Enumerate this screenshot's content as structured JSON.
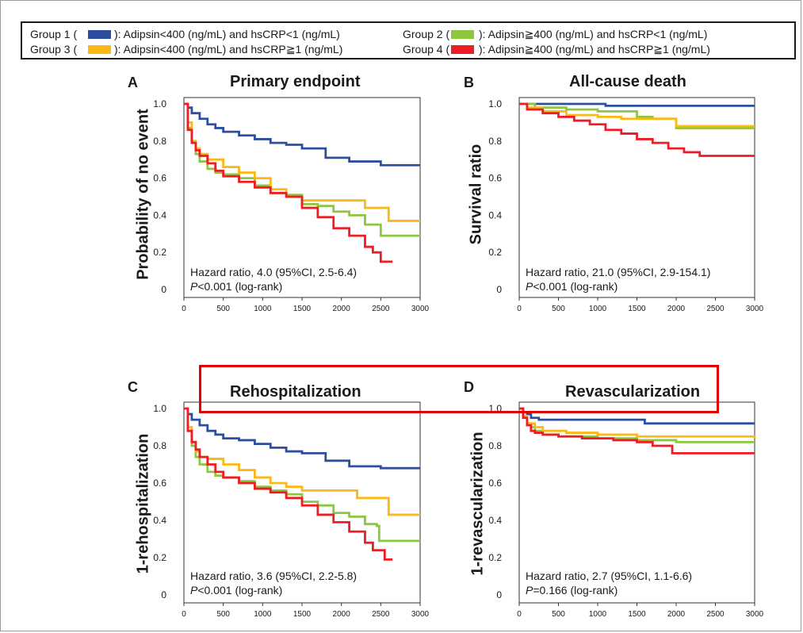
{
  "colors": {
    "g1": "#2b4f9e",
    "g2": "#8dc63f",
    "g3": "#fbb917",
    "g4": "#ee1c25",
    "highlight": "#e00000"
  },
  "legend": {
    "g1_label": "Group 1 (",
    "g1_desc": "):  Adipsin<400 (ng/mL) and hsCRP<1 (ng/mL)",
    "g2_label": "Group 2 (",
    "g2_desc": "):  Adipsin≧400 (ng/mL) and hsCRP<1 (ng/mL)",
    "g3_label": "Group 3 (",
    "g3_desc": "):  Adipsin<400 (ng/mL) and hsCRP≧1 (ng/mL)",
    "g4_label": "Group 4 (",
    "g4_desc": "):  Adipsin≧400 (ng/mL) and hsCRP≧1 (ng/mL)"
  },
  "panels": {
    "a": {
      "letter": "A",
      "title": "Primary endpoint",
      "ylabel": "Probability of no event",
      "hr": "Hazard ratio, 4.0 (95%CI, 2.5-6.4)",
      "p_italic": "P",
      "p_rest": "<0.001 (log-rank)"
    },
    "b": {
      "letter": "B",
      "title": "All-cause death",
      "ylabel": "Survival ratio",
      "hr": "Hazard ratio, 21.0 (95%CI, 2.9-154.1)",
      "p_italic": "P",
      "p_rest": "<0.001 (log-rank)"
    },
    "c": {
      "letter": "C",
      "title": "Rehospitalization",
      "ylabel": "1-rehospitalization",
      "hr": "Hazard ratio, 3.6 (95%CI, 2.2-5.8)",
      "p_italic": "P",
      "p_rest": "<0.001 (log-rank)"
    },
    "d": {
      "letter": "D",
      "title": "Revascularization",
      "ylabel": "1-revascularization",
      "hr": "Hazard ratio, 2.7 (95%CI, 1.1-6.6)",
      "p_italic": "P",
      "p_rest": "=0.166 (log-rank)"
    }
  },
  "chart_data": [
    {
      "type": "line",
      "panel": "A",
      "title": "Primary endpoint",
      "ylabel": "Probability of no event",
      "xlabel": "",
      "xlim": [
        0,
        3000
      ],
      "ylim": [
        0,
        1.05
      ],
      "xticks": [
        "0",
        "500",
        "1000",
        "1500",
        "2000",
        "2500",
        "3000"
      ],
      "yticks": [
        "0",
        "0.2",
        "0.4",
        "0.6",
        "0.8",
        "1.0"
      ],
      "series": [
        {
          "name": "Group 1",
          "color": "g1",
          "x": [
            0,
            50,
            100,
            200,
            300,
            400,
            500,
            700,
            900,
            1100,
            1300,
            1500,
            1800,
            2100,
            2500,
            3000
          ],
          "y": [
            1.0,
            0.98,
            0.95,
            0.92,
            0.89,
            0.87,
            0.85,
            0.83,
            0.81,
            0.79,
            0.78,
            0.76,
            0.71,
            0.69,
            0.67,
            0.67
          ]
        },
        {
          "name": "Group 2",
          "color": "g2",
          "x": [
            0,
            50,
            100,
            150,
            200,
            300,
            400,
            500,
            700,
            900,
            1100,
            1300,
            1500,
            1700,
            1900,
            2100,
            2300,
            2500,
            3000
          ],
          "y": [
            1.0,
            0.87,
            0.79,
            0.73,
            0.69,
            0.65,
            0.63,
            0.62,
            0.6,
            0.56,
            0.52,
            0.51,
            0.46,
            0.45,
            0.42,
            0.4,
            0.35,
            0.29,
            0.29
          ]
        },
        {
          "name": "Group 3",
          "color": "g3",
          "x": [
            0,
            50,
            100,
            150,
            200,
            300,
            500,
            700,
            900,
            1100,
            1300,
            1500,
            1900,
            2300,
            2500,
            2600,
            3000
          ],
          "y": [
            1.0,
            0.9,
            0.8,
            0.76,
            0.73,
            0.7,
            0.66,
            0.63,
            0.6,
            0.54,
            0.5,
            0.48,
            0.48,
            0.44,
            0.44,
            0.37,
            0.37
          ]
        },
        {
          "name": "Group 4",
          "color": "g4",
          "x": [
            0,
            50,
            100,
            150,
            200,
            300,
            400,
            500,
            700,
            900,
            1100,
            1300,
            1500,
            1700,
            1900,
            2100,
            2300,
            2400,
            2500,
            2650
          ],
          "y": [
            1.0,
            0.86,
            0.79,
            0.75,
            0.72,
            0.68,
            0.64,
            0.61,
            0.58,
            0.55,
            0.52,
            0.5,
            0.44,
            0.39,
            0.33,
            0.29,
            0.23,
            0.2,
            0.15,
            0.15
          ]
        }
      ]
    },
    {
      "type": "line",
      "panel": "B",
      "title": "All-cause death",
      "ylabel": "Survival ratio",
      "xlabel": "",
      "xlim": [
        0,
        3000
      ],
      "ylim": [
        0,
        1.05
      ],
      "xticks": [
        "0",
        "500",
        "1000",
        "1500",
        "2000",
        "2500",
        "3000"
      ],
      "yticks": [
        "0",
        "0.2",
        "0.4",
        "0.6",
        "0.8",
        "1.0"
      ],
      "series": [
        {
          "name": "Group 1",
          "color": "g1",
          "x": [
            0,
            800,
            1100,
            3000
          ],
          "y": [
            1.0,
            1.0,
            0.99,
            0.99
          ]
        },
        {
          "name": "Group 2",
          "color": "g2",
          "x": [
            0,
            200,
            600,
            1000,
            1500,
            1700,
            2000,
            3000
          ],
          "y": [
            1.0,
            0.98,
            0.97,
            0.96,
            0.93,
            0.92,
            0.87,
            0.87
          ]
        },
        {
          "name": "Group 3",
          "color": "g3",
          "x": [
            0,
            100,
            300,
            600,
            1000,
            1300,
            1600,
            2000,
            3000
          ],
          "y": [
            1.0,
            0.98,
            0.96,
            0.94,
            0.93,
            0.92,
            0.92,
            0.88,
            0.88
          ]
        },
        {
          "name": "Group 4",
          "color": "g4",
          "x": [
            0,
            100,
            300,
            500,
            700,
            900,
            1100,
            1300,
            1500,
            1700,
            1900,
            2100,
            2300,
            3000
          ],
          "y": [
            1.0,
            0.97,
            0.95,
            0.93,
            0.91,
            0.89,
            0.86,
            0.84,
            0.81,
            0.79,
            0.76,
            0.74,
            0.72,
            0.72
          ]
        }
      ]
    },
    {
      "type": "line",
      "panel": "C",
      "title": "Rehospitalization",
      "ylabel": "1-rehospitalization",
      "xlabel": "",
      "xlim": [
        0,
        3000
      ],
      "ylim": [
        0,
        1.05
      ],
      "xticks": [
        "0",
        "500",
        "1000",
        "1500",
        "2000",
        "2500",
        "3000"
      ],
      "yticks": [
        "0",
        "0.2",
        "0.4",
        "0.6",
        "0.8",
        "1.0"
      ],
      "series": [
        {
          "name": "Group 1",
          "color": "g1",
          "x": [
            0,
            50,
            100,
            200,
            300,
            400,
            500,
            700,
            900,
            1100,
            1300,
            1500,
            1800,
            2100,
            2500,
            3000
          ],
          "y": [
            1.0,
            0.97,
            0.94,
            0.91,
            0.88,
            0.86,
            0.84,
            0.83,
            0.81,
            0.79,
            0.77,
            0.76,
            0.72,
            0.69,
            0.68,
            0.68
          ]
        },
        {
          "name": "Group 2",
          "color": "g2",
          "x": [
            0,
            50,
            100,
            150,
            200,
            300,
            400,
            500,
            700,
            900,
            1100,
            1300,
            1500,
            1700,
            1900,
            2100,
            2300,
            2450,
            2480,
            3000
          ],
          "y": [
            1.0,
            0.88,
            0.8,
            0.74,
            0.7,
            0.66,
            0.64,
            0.63,
            0.61,
            0.58,
            0.56,
            0.54,
            0.5,
            0.48,
            0.44,
            0.42,
            0.38,
            0.37,
            0.29,
            0.29
          ]
        },
        {
          "name": "Group 3",
          "color": "g3",
          "x": [
            0,
            50,
            100,
            150,
            200,
            300,
            500,
            700,
            900,
            1100,
            1300,
            1500,
            1900,
            2200,
            2500,
            2600,
            2900,
            3000
          ],
          "y": [
            1.0,
            0.9,
            0.82,
            0.77,
            0.74,
            0.73,
            0.7,
            0.67,
            0.63,
            0.6,
            0.58,
            0.56,
            0.56,
            0.52,
            0.52,
            0.43,
            0.43,
            0.43
          ]
        },
        {
          "name": "Group 4",
          "color": "g4",
          "x": [
            0,
            50,
            100,
            150,
            200,
            300,
            400,
            500,
            700,
            900,
            1100,
            1300,
            1500,
            1700,
            1900,
            2100,
            2300,
            2400,
            2550,
            2650
          ],
          "y": [
            1.0,
            0.88,
            0.82,
            0.78,
            0.74,
            0.7,
            0.66,
            0.63,
            0.6,
            0.57,
            0.55,
            0.52,
            0.48,
            0.43,
            0.39,
            0.34,
            0.28,
            0.24,
            0.19,
            0.19
          ]
        }
      ]
    },
    {
      "type": "line",
      "panel": "D",
      "title": "Revascularization",
      "ylabel": "1-revascularization",
      "xlabel": "",
      "xlim": [
        0,
        3000
      ],
      "ylim": [
        0,
        1.05
      ],
      "xticks": [
        "0",
        "500",
        "1000",
        "1500",
        "2000",
        "2500",
        "3000"
      ],
      "yticks": [
        "0",
        "0.2",
        "0.4",
        "0.6",
        "0.8",
        "1.0"
      ],
      "series": [
        {
          "name": "Group 1",
          "color": "g1",
          "x": [
            0,
            50,
            100,
            150,
            250,
            400,
            1600,
            3000
          ],
          "y": [
            1.0,
            0.98,
            0.97,
            0.95,
            0.94,
            0.94,
            0.92,
            0.92
          ]
        },
        {
          "name": "Group 2",
          "color": "g2",
          "x": [
            0,
            50,
            100,
            150,
            200,
            300,
            500,
            1000,
            1500,
            2000,
            3000
          ],
          "y": [
            1.0,
            0.96,
            0.92,
            0.9,
            0.88,
            0.86,
            0.85,
            0.84,
            0.83,
            0.82,
            0.82
          ]
        },
        {
          "name": "Group 3",
          "color": "g3",
          "x": [
            0,
            50,
            100,
            200,
            300,
            600,
            1000,
            1500,
            3000
          ],
          "y": [
            1.0,
            0.96,
            0.92,
            0.9,
            0.88,
            0.87,
            0.86,
            0.85,
            0.84
          ]
        },
        {
          "name": "Group 4",
          "color": "g4",
          "x": [
            0,
            50,
            100,
            150,
            200,
            300,
            500,
            800,
            1200,
            1500,
            1700,
            1950,
            2000,
            3000
          ],
          "y": [
            1.0,
            0.95,
            0.91,
            0.88,
            0.87,
            0.86,
            0.85,
            0.84,
            0.83,
            0.82,
            0.8,
            0.76,
            0.76,
            0.76
          ]
        }
      ]
    }
  ]
}
